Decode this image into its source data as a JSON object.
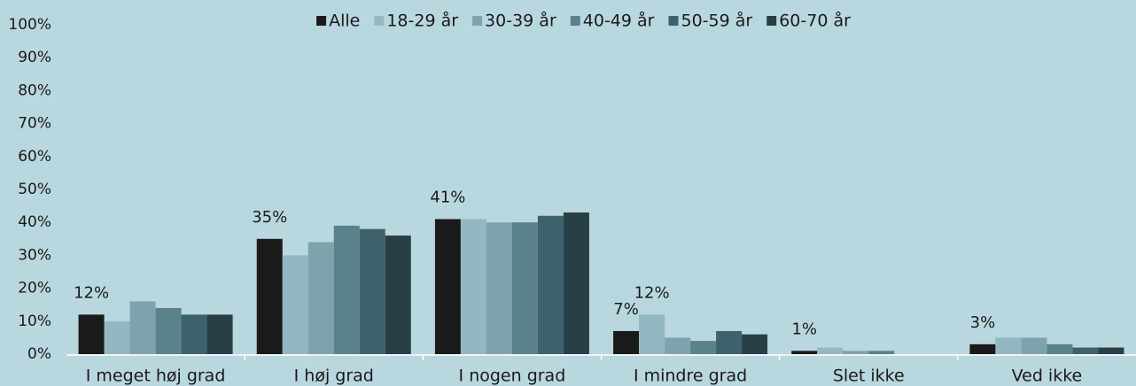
{
  "chart_data": {
    "type": "bar",
    "categories": [
      "I meget høj grad",
      "I høj grad",
      "I nogen grad",
      "I mindre grad",
      "Slet ikke",
      "Ved ikke"
    ],
    "series": [
      {
        "name": "Alle",
        "color": "#1a1a1a",
        "values": [
          12,
          35,
          41,
          7,
          1,
          3
        ],
        "value_labels": [
          "12%",
          "35%",
          "41%",
          "7%",
          "1%",
          "3%"
        ]
      },
      {
        "name": "18-29 år",
        "color": "#94b8c2",
        "values": [
          10,
          30,
          41,
          12,
          2,
          5
        ],
        "value_labels": [
          null,
          null,
          null,
          "12%",
          null,
          null
        ]
      },
      {
        "name": "30-39 år",
        "color": "#7fa3ac",
        "values": [
          16,
          34,
          40,
          5,
          1,
          5
        ]
      },
      {
        "name": "40-49 år",
        "color": "#5a828b",
        "values": [
          14,
          39,
          40,
          4,
          1,
          3
        ]
      },
      {
        "name": "50-59 år",
        "color": "#3d626b",
        "values": [
          12,
          38,
          42,
          7,
          0,
          2
        ]
      },
      {
        "name": "60-70 år",
        "color": "#283f46",
        "values": [
          12,
          36,
          43,
          6,
          0,
          2
        ]
      }
    ],
    "ylim": [
      0,
      100
    ],
    "yticks": [
      {
        "value": 0,
        "label": "0%"
      },
      {
        "value": 10,
        "label": "10%"
      },
      {
        "value": 20,
        "label": "20%"
      },
      {
        "value": 30,
        "label": "30%"
      },
      {
        "value": 40,
        "label": "40%"
      },
      {
        "value": 50,
        "label": "50%"
      },
      {
        "value": 60,
        "label": "60%"
      },
      {
        "value": 70,
        "label": "70%"
      },
      {
        "value": 80,
        "label": "80%"
      },
      {
        "value": 90,
        "label": "90%"
      },
      {
        "value": 100,
        "label": "100%"
      }
    ],
    "legend": "top"
  }
}
